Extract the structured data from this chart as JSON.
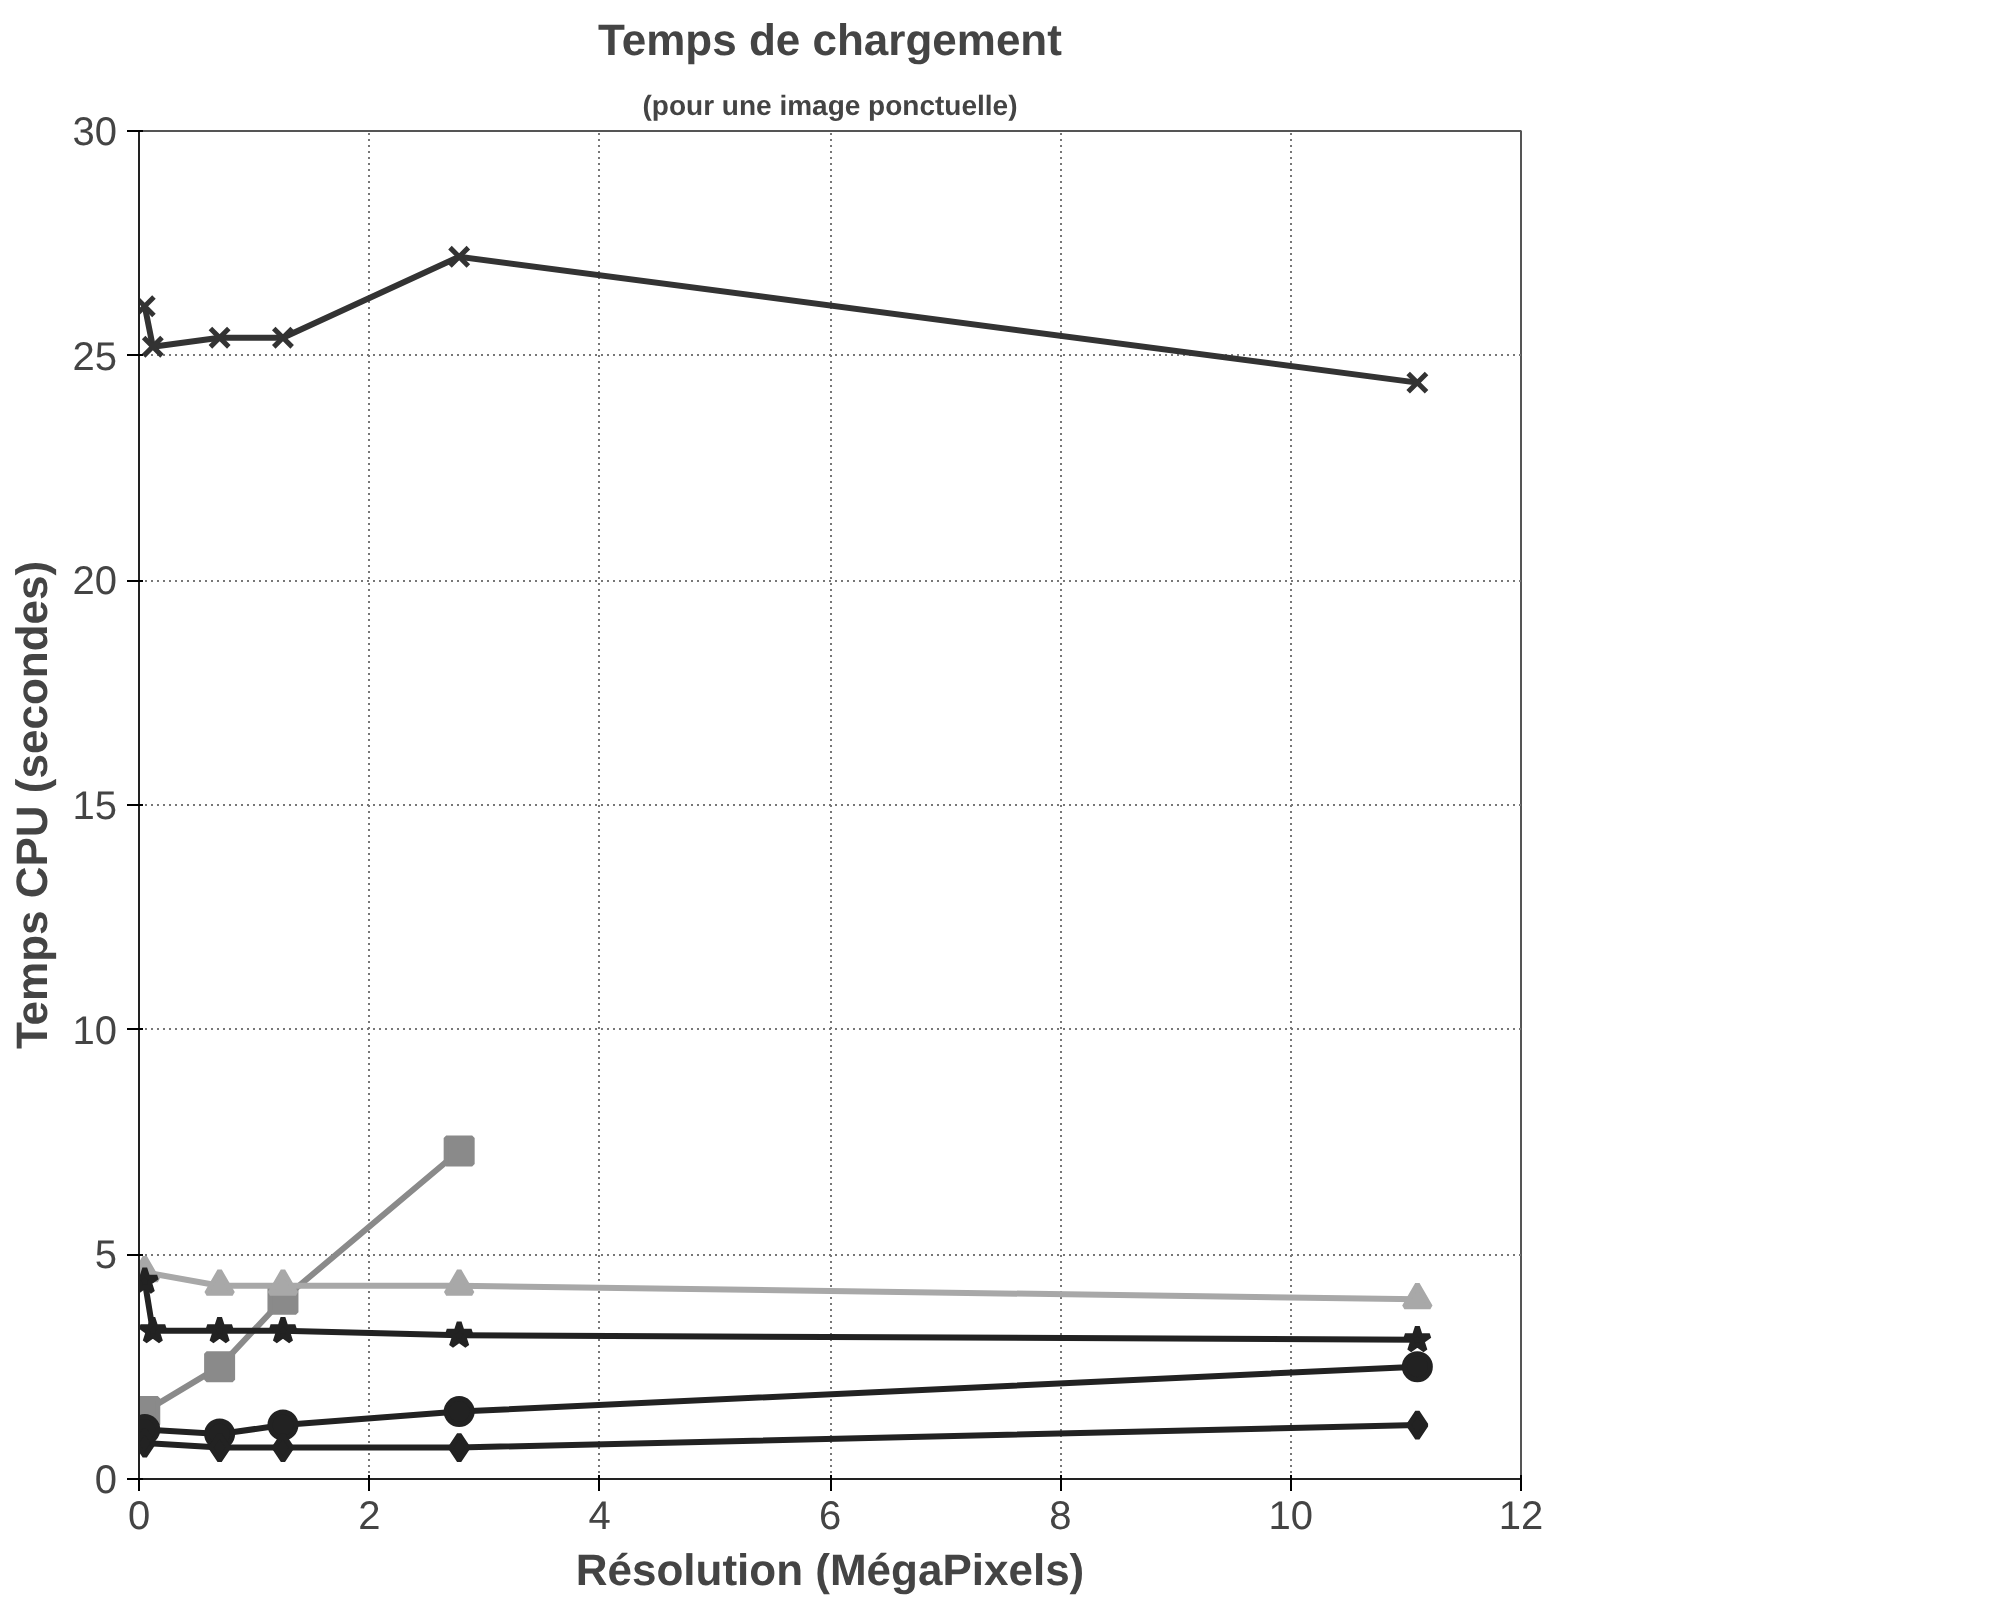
{
  "chart_data": {
    "type": "line",
    "title": "Temps de chargement",
    "subtitle": "(pour une image ponctuelle)",
    "xlabel": "Résolution (MégaPixels)",
    "ylabel": "Temps CPU (secondes)",
    "xlim": [
      0,
      12
    ],
    "xticks": [
      0,
      2,
      4,
      6,
      8,
      10,
      12
    ],
    "ylim": [
      0,
      30
    ],
    "yticks": [
      0,
      5,
      10,
      15,
      20,
      25,
      30
    ],
    "grid": true,
    "line_style": "solid",
    "series": [
      {
        "color": "#333333",
        "marker": "cross",
        "x": [
          0.05,
          0.12,
          0.7,
          1.25,
          2.78,
          11.1
        ],
        "values": [
          26.1,
          25.2,
          25.4,
          25.4,
          27.2,
          24.4
        ]
      },
      {
        "color": "#8a8a8a",
        "marker": "square",
        "x": [
          0.05,
          0.7,
          1.25,
          2.78
        ],
        "values": [
          1.5,
          2.5,
          4.0,
          7.3
        ]
      },
      {
        "color": "#a8a8a8",
        "marker": "triangle",
        "x": [
          0.05,
          0.7,
          1.25,
          2.78,
          11.1
        ],
        "values": [
          4.6,
          4.3,
          4.3,
          4.3,
          4.0
        ]
      },
      {
        "color": "#222222",
        "marker": "star",
        "x": [
          0.05,
          0.12,
          0.7,
          1.25,
          2.78,
          11.1
        ],
        "values": [
          4.4,
          3.3,
          3.3,
          3.3,
          3.2,
          3.1
        ]
      },
      {
        "color": "#222222",
        "marker": "circle",
        "x": [
          0.05,
          0.7,
          1.25,
          2.78,
          11.1
        ],
        "values": [
          1.1,
          1.0,
          1.2,
          1.5,
          2.5
        ]
      },
      {
        "color": "#222222",
        "marker": "diamond",
        "x": [
          0.05,
          0.7,
          1.25,
          2.78,
          11.1
        ],
        "values": [
          0.8,
          0.7,
          0.7,
          0.7,
          1.2
        ]
      }
    ]
  }
}
